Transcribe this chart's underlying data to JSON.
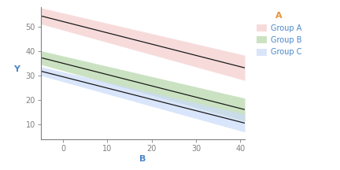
{
  "title": "",
  "xlabel": "B",
  "ylabel": "Y",
  "xlim": [
    -5,
    41
  ],
  "ylim": [
    4,
    58
  ],
  "x_ticks": [
    0,
    10,
    20,
    30,
    40
  ],
  "y_ticks": [
    10,
    20,
    30,
    40,
    50
  ],
  "groups": [
    {
      "name": "Group A",
      "intercept": 52.0,
      "slope": -0.46,
      "ci_upper_intercept": 55.5,
      "ci_upper_slope": -0.42,
      "ci_lower_intercept": 48.5,
      "ci_lower_slope": -0.5,
      "line_color": "#1a1a1a",
      "fill_color": "#F4CCCC",
      "fill_alpha": 0.7
    },
    {
      "name": "Group B",
      "intercept": 35.0,
      "slope": -0.46,
      "ci_upper_intercept": 38.0,
      "ci_upper_slope": -0.42,
      "ci_lower_intercept": 32.0,
      "ci_lower_slope": -0.5,
      "line_color": "#1a1a1a",
      "fill_color": "#B6D7A8",
      "fill_alpha": 0.7
    },
    {
      "name": "Group C",
      "intercept": 29.5,
      "slope": -0.46,
      "ci_upper_intercept": 31.5,
      "ci_upper_slope": -0.42,
      "ci_lower_intercept": 27.5,
      "ci_lower_slope": -0.5,
      "line_color": "#1a1a1a",
      "fill_color": "#C9DAF8",
      "fill_alpha": 0.7
    }
  ],
  "legend_title": "A",
  "legend_title_color": "#E69138",
  "legend_label_color": "#4A86C8",
  "background_color": "#FFFFFF",
  "axis_color": "#808080",
  "grid_color": "#FFFFFF",
  "tick_label_color": "#808080"
}
